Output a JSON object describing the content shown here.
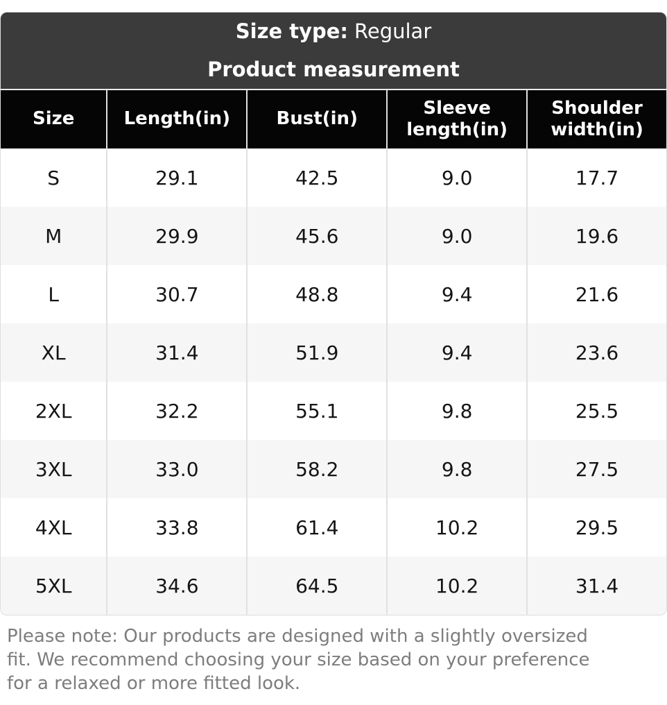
{
  "header": {
    "size_type_label": "Size type:",
    "size_type_value": "Regular",
    "title": "Product measurement"
  },
  "chart_data": {
    "type": "table",
    "title": "Product measurement",
    "size_type": "Regular",
    "unit": "in",
    "columns": [
      "Size",
      "Length(in)",
      "Bust(in)",
      "Sleeve length(in)",
      "Shoulder width(in)"
    ],
    "rows": [
      [
        "S",
        "29.1",
        "42.5",
        "9.0",
        "17.7"
      ],
      [
        "M",
        "29.9",
        "45.6",
        "9.0",
        "19.6"
      ],
      [
        "L",
        "30.7",
        "48.8",
        "9.4",
        "21.6"
      ],
      [
        "XL",
        "31.4",
        "51.9",
        "9.4",
        "23.6"
      ],
      [
        "2XL",
        "32.2",
        "55.1",
        "9.8",
        "25.5"
      ],
      [
        "3XL",
        "33.0",
        "58.2",
        "9.8",
        "27.5"
      ],
      [
        "4XL",
        "33.8",
        "61.4",
        "10.2",
        "29.5"
      ],
      [
        "5XL",
        "34.6",
        "64.5",
        "10.2",
        "31.4"
      ]
    ]
  },
  "note": {
    "lines": [
      "Please note: Our products are designed with a slightly oversized",
      "fit. We recommend choosing your size based on your preference",
      "for a relaxed or more fitted look."
    ]
  },
  "colors": {
    "card_header_bg": "#3b3b3b",
    "table_header_bg": "#050505",
    "table_header_text": "#ffffff",
    "row_bg": "#ffffff",
    "row_alt_bg": "#f6f6f6",
    "separator": "#e1e1e1",
    "note_text": "#7d7d7d"
  }
}
